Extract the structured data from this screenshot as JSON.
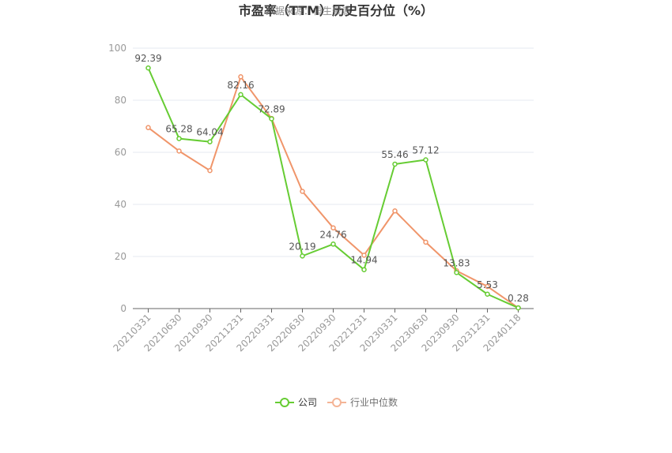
{
  "chart_data": {
    "type": "line",
    "title": "市盈率（TTM）历史百分位（%）",
    "watermark": "数据来源：恒生聚源",
    "categories": [
      "20210331",
      "20210630",
      "20210930",
      "20211231",
      "20220331",
      "20220630",
      "20220930",
      "20221231",
      "20230331",
      "20230630",
      "20230930",
      "20231231",
      "20240118"
    ],
    "ylim": [
      0,
      100
    ],
    "yticks": [
      "0",
      "20",
      "40",
      "60",
      "80",
      "100"
    ],
    "grid": true,
    "legend_position": "bottom-center",
    "series": [
      {
        "name": "公司",
        "color": "#66cc33",
        "values": [
          92.39,
          65.28,
          64.04,
          82.16,
          72.89,
          20.19,
          24.76,
          14.94,
          55.46,
          57.12,
          13.83,
          5.53,
          0.28
        ],
        "labels": [
          "92.39",
          "65.28",
          "64.04",
          "82.16",
          "72.89",
          "20.19",
          "24.76",
          "14.94",
          "55.46",
          "57.12",
          "13.83",
          "5.53",
          "0.28"
        ]
      },
      {
        "name": "行业中位数",
        "color": "#f0956a",
        "values": [
          69.5,
          60.5,
          53.0,
          89.0,
          73.0,
          45.0,
          31.0,
          20.5,
          37.5,
          25.5,
          14.5,
          8.5,
          0.3
        ]
      }
    ]
  }
}
